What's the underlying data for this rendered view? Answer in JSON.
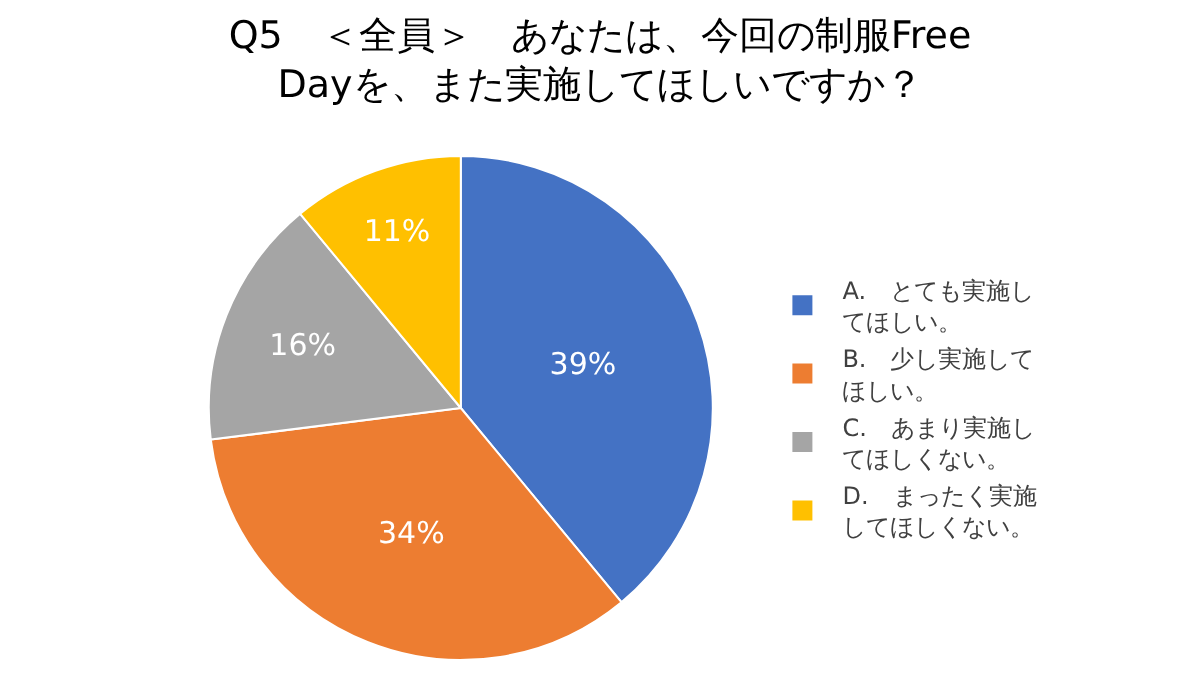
{
  "chart_data": {
    "type": "pie",
    "title": "Q5　＜全員＞　あなたは、今回の制服Free Dayを、また実施してほしいですか？",
    "categories": [
      "A.　とても実施してほしい。",
      "B.　少し実施してほしい。",
      "C.　あまり実施してほしくない。",
      "D.　まったく実施してほしくない。"
    ],
    "values": [
      39,
      34,
      16,
      11
    ],
    "value_labels": [
      "39%",
      "34%",
      "16%",
      "11%"
    ],
    "colors": [
      "#4472c4",
      "#ed7d31",
      "#a5a5a5",
      "#ffc000"
    ],
    "legend": "right"
  }
}
